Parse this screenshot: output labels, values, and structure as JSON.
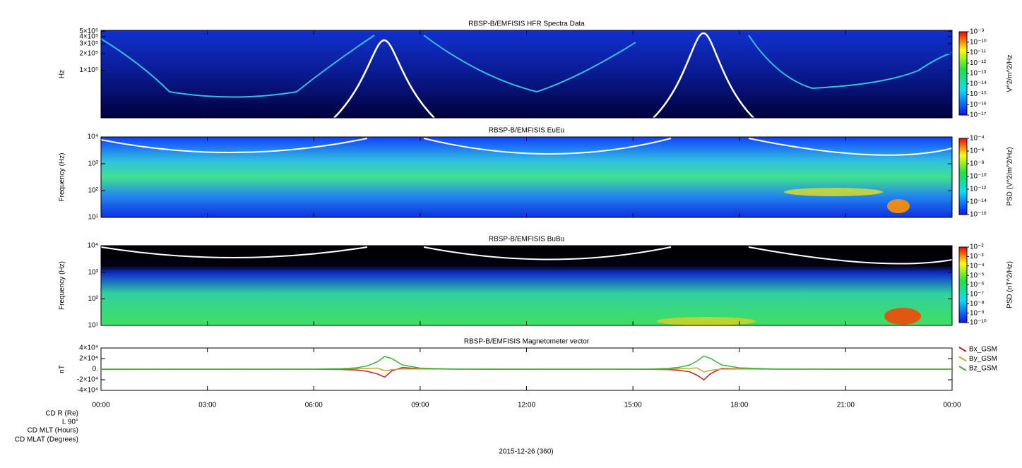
{
  "chart_data": [
    {
      "type": "spectrogram",
      "title": "RBSP-B/EMFISIS  HFR Spectra Data",
      "ylabel": "Hz",
      "ylog": true,
      "ylim": [
        14000,
        520000
      ],
      "yticks": [
        {
          "value": 100000,
          "label": "1×10⁵"
        },
        {
          "value": 200000,
          "label": "2×10⁵"
        },
        {
          "value": 300000,
          "label": "3×10⁵"
        },
        {
          "value": 400000,
          "label": "4×10⁵"
        },
        {
          "value": 500000,
          "label": "5×10⁵"
        }
      ],
      "colorbar": {
        "label": "V^2/m^2/Hz",
        "log": true,
        "clim": [
          1e-17,
          1e-09
        ],
        "ticks": [
          {
            "value": 1e-09,
            "label": "10⁻⁹"
          },
          {
            "value": 1e-10,
            "label": "10⁻¹⁰"
          },
          {
            "value": 1e-11,
            "label": "10⁻¹¹"
          },
          {
            "value": 1e-12,
            "label": "10⁻¹²"
          },
          {
            "value": 1e-13,
            "label": "10⁻¹³"
          },
          {
            "value": 1e-14,
            "label": "10⁻¹⁴"
          },
          {
            "value": 1e-15,
            "label": "10⁻¹⁵"
          },
          {
            "value": 1e-16,
            "label": "10⁻¹⁶"
          },
          {
            "value": 1e-17,
            "label": "10⁻¹⁷"
          }
        ]
      }
    },
    {
      "type": "spectrogram",
      "title": "RBSP-B/EMFISIS  EuEu",
      "ylabel": "Frequency (Hz)",
      "ylog": true,
      "ylim": [
        10,
        10000
      ],
      "yticks": [
        {
          "value": 10,
          "label": "10¹"
        },
        {
          "value": 100,
          "label": "10²"
        },
        {
          "value": 1000,
          "label": "10³"
        },
        {
          "value": 10000,
          "label": "10⁴"
        }
      ],
      "colorbar": {
        "label": "PSD (V^2/m^2/Hz)",
        "log": true,
        "clim": [
          1e-16,
          0.0001
        ],
        "ticks": [
          {
            "value": 0.0001,
            "label": "10⁻⁴"
          },
          {
            "value": 1e-06,
            "label": "10⁻⁶"
          },
          {
            "value": 1e-08,
            "label": "10⁻⁸"
          },
          {
            "value": 1e-10,
            "label": "10⁻¹⁰"
          },
          {
            "value": 1e-12,
            "label": "10⁻¹²"
          },
          {
            "value": 1e-14,
            "label": "10⁻¹⁴"
          },
          {
            "value": 1e-16,
            "label": "10⁻¹⁶"
          }
        ]
      }
    },
    {
      "type": "spectrogram",
      "title": "RBSP-B/EMFISIS  BuBu",
      "ylabel": "Frequency (Hz)",
      "ylog": true,
      "ylim": [
        10,
        10000
      ],
      "yticks": [
        {
          "value": 10,
          "label": "10¹"
        },
        {
          "value": 100,
          "label": "10²"
        },
        {
          "value": 1000,
          "label": "10³"
        },
        {
          "value": 10000,
          "label": "10⁴"
        }
      ],
      "colorbar": {
        "label": "PSD (nT^2/Hz)",
        "log": true,
        "clim": [
          1e-10,
          0.01
        ],
        "ticks": [
          {
            "value": 0.01,
            "label": "10⁻²"
          },
          {
            "value": 0.001,
            "label": "10⁻³"
          },
          {
            "value": 0.0001,
            "label": "10⁻⁴"
          },
          {
            "value": 1e-05,
            "label": "10⁻⁵"
          },
          {
            "value": 1e-06,
            "label": "10⁻⁶"
          },
          {
            "value": 1e-07,
            "label": "10⁻⁷"
          },
          {
            "value": 1e-08,
            "label": "10⁻⁸"
          },
          {
            "value": 1e-09,
            "label": "10⁻⁹"
          },
          {
            "value": 1e-10,
            "label": "10⁻¹⁰"
          }
        ]
      }
    },
    {
      "type": "line",
      "title": "RBSP-B/EMFISIS  Magnetometer vector",
      "ylabel": "nT",
      "xlim": [
        0,
        24
      ],
      "xticks": [
        {
          "value": 0,
          "label": "00:00"
        },
        {
          "value": 3,
          "label": "03:00"
        },
        {
          "value": 6,
          "label": "06:00"
        },
        {
          "value": 9,
          "label": "09:00"
        },
        {
          "value": 12,
          "label": "12:00"
        },
        {
          "value": 15,
          "label": "15:00"
        },
        {
          "value": 18,
          "label": "18:00"
        },
        {
          "value": 21,
          "label": "21:00"
        },
        {
          "value": 24,
          "label": "00:00"
        }
      ],
      "ylim": [
        -40000,
        40000
      ],
      "yticks": [
        {
          "value": 40000,
          "label": "4×10⁴"
        },
        {
          "value": 20000,
          "label": "2×10⁴"
        },
        {
          "value": 0,
          "label": "0."
        },
        {
          "value": -20000,
          "label": "-2×10⁴"
        },
        {
          "value": -40000,
          "label": "-4×10⁴"
        }
      ],
      "legend": "right",
      "x": [
        0,
        2,
        4,
        6,
        6.8,
        7.2,
        7.5,
        7.8,
        8,
        8.2,
        8.5,
        9,
        10,
        12,
        14,
        15.5,
        16,
        16.3,
        16.6,
        16.8,
        17,
        17.2,
        17.5,
        18,
        19,
        21,
        24
      ],
      "series": [
        {
          "name": "Bx_GSM",
          "color": "#b22222",
          "values": [
            -500,
            -300,
            -200,
            -200,
            -600,
            -1500,
            -4000,
            -9000,
            -15000,
            -3000,
            3000,
            800,
            0,
            -300,
            -200,
            -300,
            -800,
            -2000,
            -5000,
            -11000,
            -20000,
            -8000,
            1500,
            500,
            0,
            0,
            0
          ]
        },
        {
          "name": "By_GSM",
          "color": "#c8a832",
          "values": [
            0,
            0,
            0,
            0,
            300,
            800,
            1500,
            2000,
            -3000,
            -1000,
            500,
            200,
            0,
            0,
            0,
            0,
            300,
            800,
            1500,
            2500,
            -5000,
            -2000,
            300,
            100,
            0,
            0,
            0
          ]
        },
        {
          "name": "Bz_GSM",
          "color": "#3cb43c",
          "values": [
            0,
            0,
            0,
            200,
            1000,
            2500,
            6000,
            14000,
            24000,
            20000,
            8000,
            2000,
            300,
            0,
            0,
            300,
            1500,
            3500,
            8000,
            15000,
            25000,
            20000,
            8000,
            2500,
            400,
            0,
            0
          ]
        }
      ]
    }
  ],
  "footer": {
    "orbit_labels": [
      "CD R (Re)",
      "L 90°",
      "CD MLT (Hours)",
      "CD MLAT (Degrees)"
    ],
    "date": "2015-12-26 (360)"
  }
}
